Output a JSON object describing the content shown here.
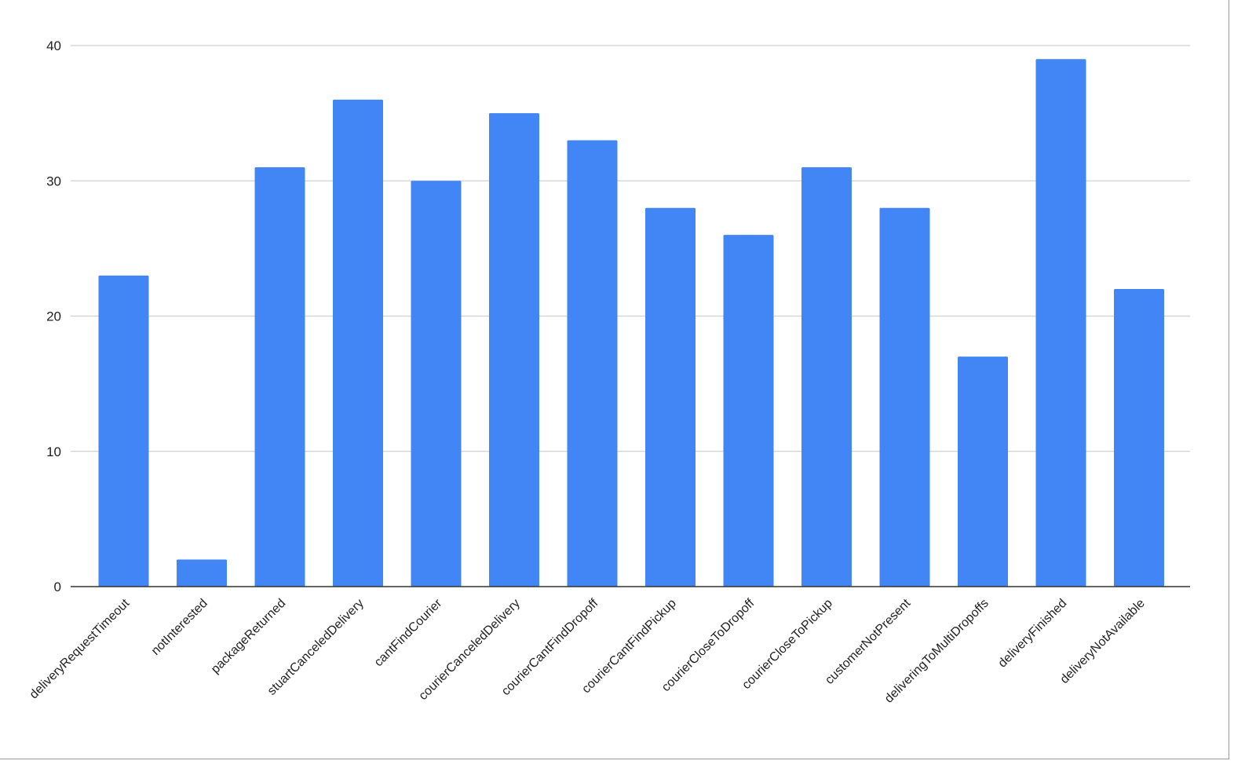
{
  "chart_data": {
    "type": "bar",
    "title": "",
    "xlabel": "",
    "ylabel": "",
    "categories": [
      "deliveryRequestTimeout",
      "notInterested",
      "packageReturned",
      "stuartCanceledDelivery",
      "cantFindCourier",
      "courierCanceledDelivery",
      "courierCantFindDropoff",
      "courierCantFindPickup",
      "courierCloseToDropoff",
      "courierCloseToPickup",
      "customerNotPresent",
      "deliveringToMultiDropoffs",
      "deliveryFinished",
      "deliveryNotAvailable"
    ],
    "values": [
      23,
      2,
      31,
      36,
      30,
      35,
      33,
      28,
      26,
      31,
      28,
      17,
      39,
      22
    ],
    "ylim": [
      0,
      40
    ],
    "yticks": [
      "0",
      "10",
      "20",
      "30",
      "40"
    ],
    "grid": true,
    "legend": "none",
    "bar_color": "#4285f4",
    "grid_color": "#d0d0d0",
    "axis_color": "#333333"
  }
}
